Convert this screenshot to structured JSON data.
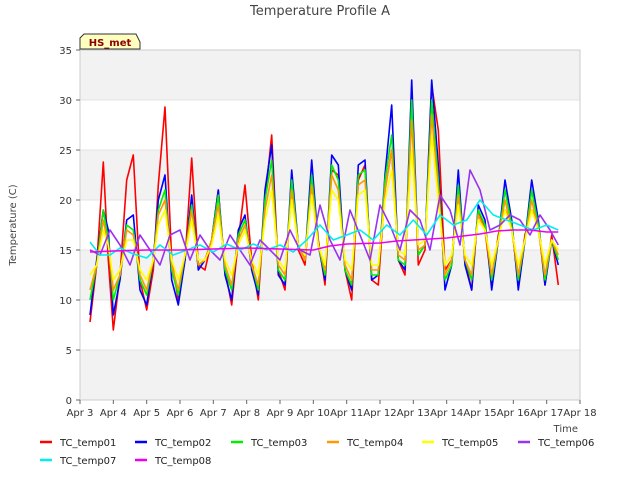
{
  "chart_data": {
    "type": "line",
    "title": "Temperature Profile A",
    "xlabel": "Time",
    "ylabel": "Temperature (C)",
    "site_badge": "HS_met",
    "xlim": [
      3,
      18
    ],
    "ylim": [
      0,
      35
    ],
    "x_ticks": [
      "Apr 3",
      "Apr 4",
      "Apr 5",
      "Apr 6",
      "Apr 7",
      "Apr 8",
      "Apr 9",
      "Apr 10",
      "Apr 11",
      "Apr 12",
      "Apr 13",
      "Apr 14",
      "Apr 15",
      "Apr 16",
      "Apr 17",
      "Apr 18"
    ],
    "x_tick_values": [
      3,
      4,
      5,
      6,
      7,
      8,
      9,
      10,
      11,
      12,
      13,
      14,
      15,
      16,
      17,
      18
    ],
    "y_ticks": [
      0,
      5,
      10,
      15,
      20,
      25,
      30,
      35
    ],
    "grid": true,
    "legend_position": "bottom",
    "series": [
      {
        "name": "TC_temp01",
        "color": "#ff0000",
        "x": [
          3.3,
          3.5,
          3.7,
          3.85,
          4.0,
          4.2,
          4.4,
          4.6,
          4.8,
          5.0,
          5.2,
          5.35,
          5.55,
          5.75,
          5.95,
          6.15,
          6.35,
          6.55,
          6.75,
          6.95,
          7.15,
          7.35,
          7.55,
          7.75,
          7.95,
          8.15,
          8.35,
          8.55,
          8.75,
          8.95,
          9.15,
          9.35,
          9.55,
          9.75,
          9.95,
          10.15,
          10.35,
          10.55,
          10.75,
          10.95,
          11.15,
          11.35,
          11.55,
          11.75,
          11.95,
          12.15,
          12.35,
          12.55,
          12.75,
          12.95,
          13.15,
          13.35,
          13.55,
          13.75,
          13.95,
          14.15,
          14.35,
          14.55,
          14.75,
          14.95,
          15.15,
          15.35,
          15.55,
          15.75,
          15.95,
          16.15,
          16.35,
          16.55,
          16.75,
          16.95,
          17.15,
          17.35
        ],
        "y": [
          7.8,
          13.5,
          23.8,
          14.0,
          7.0,
          12.5,
          22.0,
          24.5,
          12.0,
          9.0,
          13.0,
          21.5,
          29.3,
          14.0,
          10.0,
          14.0,
          24.2,
          13.5,
          13.0,
          16.0,
          21.0,
          13.0,
          9.5,
          16.0,
          21.5,
          14.0,
          10.0,
          20.0,
          26.5,
          13.0,
          11.0,
          22.0,
          15.0,
          13.5,
          22.5,
          16.0,
          11.5,
          23.0,
          22.5,
          13.0,
          10.0,
          22.0,
          23.5,
          12.0,
          11.5,
          21.0,
          25.0,
          14.0,
          12.5,
          30.5,
          13.5,
          15.0,
          31.5,
          27.0,
          13.0,
          14.0,
          21.0,
          14.0,
          11.0,
          19.0,
          17.0,
          11.5,
          16.5,
          19.0,
          17.5,
          11.5,
          16.5,
          19.0,
          17.5,
          11.5,
          16.5,
          11.5
        ]
      },
      {
        "name": "TC_temp02",
        "color": "#0000ff",
        "x": [
          3.3,
          3.5,
          3.7,
          3.85,
          4.0,
          4.2,
          4.4,
          4.6,
          4.8,
          5.0,
          5.2,
          5.35,
          5.55,
          5.75,
          5.95,
          6.15,
          6.35,
          6.55,
          6.75,
          6.95,
          7.15,
          7.35,
          7.55,
          7.75,
          7.95,
          8.15,
          8.35,
          8.55,
          8.75,
          8.95,
          9.15,
          9.35,
          9.55,
          9.75,
          9.95,
          10.15,
          10.35,
          10.55,
          10.75,
          10.95,
          11.15,
          11.35,
          11.55,
          11.75,
          11.95,
          12.15,
          12.35,
          12.55,
          12.75,
          12.95,
          13.15,
          13.35,
          13.55,
          13.75,
          13.95,
          14.15,
          14.35,
          14.55,
          14.75,
          14.95,
          15.15,
          15.35,
          15.55,
          15.75,
          15.95,
          16.15,
          16.35,
          16.55,
          16.75,
          16.95,
          17.15,
          17.35
        ],
        "y": [
          8.5,
          14.0,
          19.0,
          17.0,
          8.5,
          12.0,
          18.0,
          18.5,
          11.0,
          9.5,
          14.0,
          20.0,
          22.5,
          12.0,
          9.5,
          14.0,
          20.5,
          13.0,
          14.0,
          16.0,
          21.0,
          12.5,
          10.0,
          17.0,
          18.5,
          13.0,
          10.5,
          21.0,
          25.5,
          12.5,
          11.5,
          23.0,
          15.5,
          14.0,
          24.0,
          15.5,
          12.0,
          24.5,
          23.5,
          13.0,
          11.0,
          23.5,
          24.0,
          12.0,
          12.5,
          22.5,
          29.5,
          14.0,
          13.0,
          32.0,
          14.5,
          15.5,
          32.0,
          23.5,
          11.0,
          13.5,
          23.0,
          13.5,
          11.0,
          19.5,
          18.0,
          11.0,
          16.0,
          22.0,
          18.0,
          11.0,
          16.0,
          22.0,
          18.0,
          11.5,
          16.0,
          13.5
        ]
      },
      {
        "name": "TC_temp03",
        "color": "#00ee00",
        "x": [
          3.3,
          3.5,
          3.7,
          3.85,
          4.0,
          4.2,
          4.4,
          4.6,
          4.8,
          5.0,
          5.2,
          5.35,
          5.55,
          5.75,
          5.95,
          6.15,
          6.35,
          6.55,
          6.75,
          6.95,
          7.15,
          7.35,
          7.55,
          7.75,
          7.95,
          8.15,
          8.35,
          8.55,
          8.75,
          8.95,
          9.15,
          9.35,
          9.55,
          9.75,
          9.95,
          10.15,
          10.35,
          10.55,
          10.75,
          10.95,
          11.15,
          11.35,
          11.55,
          11.75,
          11.95,
          12.15,
          12.35,
          12.55,
          12.75,
          12.95,
          13.15,
          13.35,
          13.55,
          13.75,
          13.95,
          14.15,
          14.35,
          14.55,
          14.75,
          14.95,
          15.15,
          15.35,
          15.55,
          15.75,
          15.95,
          16.15,
          16.35,
          16.55,
          16.75,
          16.95,
          17.15,
          17.35
        ],
        "y": [
          10.0,
          13.5,
          19.0,
          16.0,
          10.0,
          12.5,
          17.5,
          17.0,
          12.0,
          10.5,
          14.0,
          19.0,
          21.0,
          13.0,
          10.5,
          14.5,
          19.5,
          13.5,
          14.0,
          16.0,
          20.5,
          13.0,
          11.0,
          16.5,
          18.0,
          13.5,
          11.0,
          20.0,
          24.0,
          13.0,
          12.0,
          22.0,
          15.5,
          14.0,
          22.5,
          15.5,
          12.5,
          23.5,
          22.0,
          13.0,
          11.5,
          22.5,
          23.0,
          12.5,
          12.5,
          22.0,
          26.5,
          14.0,
          13.5,
          30.0,
          14.5,
          15.5,
          30.0,
          22.0,
          12.0,
          13.5,
          21.5,
          14.0,
          12.0,
          19.0,
          17.5,
          12.0,
          16.0,
          21.0,
          17.5,
          12.0,
          16.0,
          21.0,
          17.5,
          12.0,
          16.0,
          14.0
        ]
      },
      {
        "name": "TC_temp04",
        "color": "#ff9900",
        "x": [
          3.3,
          3.5,
          3.7,
          3.85,
          4.0,
          4.2,
          4.4,
          4.6,
          4.8,
          5.0,
          5.2,
          5.35,
          5.55,
          5.75,
          5.95,
          6.15,
          6.35,
          6.55,
          6.75,
          6.95,
          7.15,
          7.35,
          7.55,
          7.75,
          7.95,
          8.15,
          8.35,
          8.55,
          8.75,
          8.95,
          9.15,
          9.35,
          9.55,
          9.75,
          9.95,
          10.15,
          10.35,
          10.55,
          10.75,
          10.95,
          11.15,
          11.35,
          11.55,
          11.75,
          11.95,
          12.15,
          12.35,
          12.55,
          12.75,
          12.95,
          13.15,
          13.35,
          13.55,
          13.75,
          13.95,
          14.15,
          14.35,
          14.55,
          14.75,
          14.95,
          15.15,
          15.35,
          15.55,
          15.75,
          15.95,
          16.15,
          16.35,
          16.55,
          16.75,
          16.95,
          17.15,
          17.35
        ],
        "y": [
          11.0,
          13.5,
          18.0,
          15.5,
          11.0,
          12.5,
          17.0,
          16.5,
          12.5,
          11.0,
          14.0,
          18.5,
          20.0,
          13.5,
          11.0,
          14.5,
          19.0,
          13.5,
          14.0,
          16.0,
          19.5,
          13.5,
          11.5,
          16.0,
          17.5,
          13.5,
          11.5,
          19.0,
          22.5,
          13.5,
          12.5,
          21.0,
          15.5,
          14.0,
          21.5,
          15.5,
          13.0,
          22.5,
          21.0,
          13.5,
          12.0,
          21.5,
          22.0,
          13.0,
          13.0,
          21.0,
          25.0,
          14.5,
          14.0,
          28.0,
          15.0,
          15.5,
          28.5,
          21.0,
          12.5,
          14.0,
          20.5,
          14.0,
          12.5,
          18.5,
          17.0,
          12.5,
          16.0,
          20.0,
          17.0,
          12.5,
          16.0,
          20.0,
          17.0,
          12.5,
          16.0,
          14.5
        ]
      },
      {
        "name": "TC_temp05",
        "color": "#ffff00",
        "x": [
          3.3,
          3.5,
          3.7,
          3.85,
          4.0,
          4.2,
          4.4,
          4.6,
          4.8,
          5.0,
          5.2,
          5.35,
          5.55,
          5.75,
          5.95,
          6.15,
          6.35,
          6.55,
          6.75,
          6.95,
          7.15,
          7.35,
          7.55,
          7.75,
          7.95,
          8.15,
          8.35,
          8.55,
          8.75,
          8.95,
          9.15,
          9.35,
          9.55,
          9.75,
          9.95,
          10.15,
          10.35,
          10.55,
          10.75,
          10.95,
          11.15,
          11.35,
          11.55,
          11.75,
          11.95,
          12.15,
          12.35,
          12.55,
          12.75,
          12.95,
          13.15,
          13.35,
          13.55,
          13.75,
          13.95,
          14.15,
          14.35,
          14.55,
          14.75,
          14.95,
          15.15,
          15.35,
          15.55,
          15.75,
          15.95,
          16.15,
          16.35,
          16.55,
          16.75,
          16.95,
          17.15,
          17.35
        ],
        "y": [
          12.5,
          13.5,
          17.0,
          15.5,
          12.0,
          13.0,
          16.0,
          16.0,
          13.0,
          12.0,
          14.0,
          17.5,
          19.0,
          14.0,
          12.0,
          14.5,
          18.0,
          14.0,
          14.0,
          15.5,
          18.5,
          14.0,
          12.5,
          15.5,
          17.0,
          14.0,
          12.5,
          18.0,
          21.0,
          14.0,
          13.0,
          20.0,
          15.5,
          14.5,
          20.5,
          15.5,
          13.5,
          21.0,
          20.0,
          14.0,
          13.0,
          20.5,
          21.0,
          13.5,
          13.5,
          20.0,
          23.0,
          15.0,
          14.5,
          25.0,
          15.5,
          16.0,
          26.5,
          20.0,
          13.5,
          14.5,
          19.5,
          14.5,
          13.5,
          18.0,
          17.0,
          13.5,
          16.0,
          19.0,
          17.0,
          13.5,
          16.0,
          19.0,
          17.0,
          13.5,
          16.0,
          15.0
        ]
      },
      {
        "name": "TC_temp06",
        "color": "#9933ee",
        "x": [
          3.3,
          3.6,
          3.9,
          4.2,
          4.5,
          4.8,
          5.1,
          5.4,
          5.7,
          6.0,
          6.3,
          6.6,
          6.9,
          7.2,
          7.5,
          7.8,
          8.1,
          8.4,
          8.7,
          9.0,
          9.3,
          9.6,
          9.9,
          10.2,
          10.5,
          10.8,
          11.1,
          11.4,
          11.7,
          12.0,
          12.3,
          12.6,
          12.9,
          13.2,
          13.5,
          13.8,
          14.1,
          14.4,
          14.7,
          15.0,
          15.3,
          15.6,
          15.9,
          16.2,
          16.5,
          16.8,
          17.1,
          17.35
        ],
        "y": [
          15.0,
          14.5,
          17.0,
          15.5,
          13.5,
          16.5,
          15.0,
          13.5,
          16.5,
          17.0,
          14.0,
          16.5,
          15.0,
          14.0,
          16.5,
          15.0,
          13.5,
          16.0,
          15.0,
          14.0,
          17.0,
          15.0,
          14.5,
          19.5,
          16.0,
          14.0,
          19.0,
          16.5,
          14.0,
          19.5,
          17.5,
          15.0,
          19.0,
          18.0,
          15.0,
          20.5,
          19.0,
          15.5,
          23.0,
          21.0,
          17.0,
          17.5,
          18.5,
          18.0,
          16.5,
          18.5,
          17.0,
          15.5
        ]
      },
      {
        "name": "TC_temp07",
        "color": "#00eeee",
        "x": [
          3.3,
          3.6,
          3.9,
          4.2,
          4.6,
          5.0,
          5.4,
          5.8,
          6.2,
          6.6,
          7.0,
          7.4,
          7.8,
          8.2,
          8.6,
          9.0,
          9.4,
          9.8,
          10.2,
          10.6,
          11.0,
          11.4,
          11.8,
          12.2,
          12.6,
          13.0,
          13.4,
          13.8,
          14.2,
          14.6,
          15.0,
          15.4,
          15.8,
          16.2,
          16.6,
          17.0,
          17.35
        ],
        "y": [
          15.8,
          14.5,
          14.5,
          15.2,
          14.6,
          14.2,
          15.5,
          14.5,
          15.0,
          15.5,
          14.8,
          15.6,
          15.0,
          15.6,
          15.0,
          15.5,
          14.8,
          16.0,
          17.5,
          16.0,
          16.5,
          17.0,
          16.0,
          17.5,
          16.5,
          18.0,
          16.5,
          18.5,
          17.5,
          18.0,
          20.0,
          18.5,
          18.0,
          17.5,
          17.0,
          17.5,
          17.0
        ]
      },
      {
        "name": "TC_temp08",
        "color": "#ee00ee",
        "x": [
          3.3,
          4.0,
          5.0,
          6.0,
          7.0,
          8.0,
          9.0,
          10.0,
          10.5,
          11.0,
          12.0,
          12.5,
          13.0,
          13.5,
          14.0,
          14.5,
          15.0,
          15.5,
          16.0,
          16.5,
          17.0,
          17.35
        ],
        "y": [
          14.8,
          14.9,
          15.0,
          15.0,
          15.1,
          15.2,
          15.1,
          15.0,
          15.4,
          15.6,
          15.7,
          15.9,
          16.0,
          16.1,
          16.2,
          16.4,
          16.6,
          16.9,
          17.0,
          17.0,
          16.8,
          16.8
        ]
      }
    ]
  }
}
